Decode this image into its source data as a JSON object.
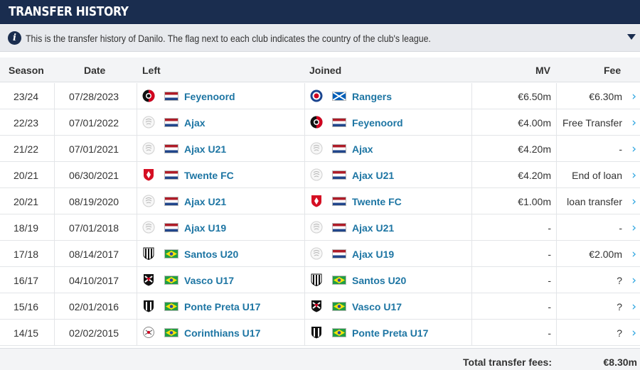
{
  "header": {
    "title": "TRANSFER HISTORY"
  },
  "info": {
    "text": "This is the transfer history of Danilo. The flag next to each club indicates the country of the club's league."
  },
  "columns": {
    "season": "Season",
    "date": "Date",
    "left": "Left",
    "joined": "Joined",
    "mv": "MV",
    "fee": "Fee"
  },
  "colors": {
    "header_bg": "#1a2d4f",
    "link": "#1d75a3",
    "chevron": "#2aa4e0"
  },
  "rows": [
    {
      "season": "23/24",
      "date": "07/28/2023",
      "left": {
        "club": "Feyenoord",
        "crest": "feyenoord-crest-icon",
        "flag": "netherlands-flag-icon"
      },
      "joined": {
        "club": "Rangers",
        "crest": "rangers-crest-icon",
        "flag": "scotland-flag-icon"
      },
      "mv": "€6.50m",
      "fee": "€6.30m"
    },
    {
      "season": "22/23",
      "date": "07/01/2022",
      "left": {
        "club": "Ajax",
        "crest": "ajax-crest-icon",
        "flag": "netherlands-flag-icon"
      },
      "joined": {
        "club": "Feyenoord",
        "crest": "feyenoord-crest-icon",
        "flag": "netherlands-flag-icon"
      },
      "mv": "€4.00m",
      "fee": "Free Transfer"
    },
    {
      "season": "21/22",
      "date": "07/01/2021",
      "left": {
        "club": "Ajax U21",
        "crest": "ajax-crest-icon",
        "flag": "netherlands-flag-icon"
      },
      "joined": {
        "club": "Ajax",
        "crest": "ajax-crest-icon",
        "flag": "netherlands-flag-icon"
      },
      "mv": "€4.20m",
      "fee": "-"
    },
    {
      "season": "20/21",
      "date": "06/30/2021",
      "left": {
        "club": "Twente FC",
        "crest": "twente-crest-icon",
        "flag": "netherlands-flag-icon"
      },
      "joined": {
        "club": "Ajax U21",
        "crest": "ajax-crest-icon",
        "flag": "netherlands-flag-icon"
      },
      "mv": "€4.20m",
      "fee": "End of loan"
    },
    {
      "season": "20/21",
      "date": "08/19/2020",
      "left": {
        "club": "Ajax U21",
        "crest": "ajax-crest-icon",
        "flag": "netherlands-flag-icon"
      },
      "joined": {
        "club": "Twente FC",
        "crest": "twente-crest-icon",
        "flag": "netherlands-flag-icon"
      },
      "mv": "€1.00m",
      "fee": "loan transfer"
    },
    {
      "season": "18/19",
      "date": "07/01/2018",
      "left": {
        "club": "Ajax U19",
        "crest": "ajax-crest-icon",
        "flag": "netherlands-flag-icon"
      },
      "joined": {
        "club": "Ajax U21",
        "crest": "ajax-crest-icon",
        "flag": "netherlands-flag-icon"
      },
      "mv": "-",
      "fee": "-"
    },
    {
      "season": "17/18",
      "date": "08/14/2017",
      "left": {
        "club": "Santos U20",
        "crest": "santos-crest-icon",
        "flag": "brazil-flag-icon"
      },
      "joined": {
        "club": "Ajax U19",
        "crest": "ajax-crest-icon",
        "flag": "netherlands-flag-icon"
      },
      "mv": "-",
      "fee": "€2.00m"
    },
    {
      "season": "16/17",
      "date": "04/10/2017",
      "left": {
        "club": "Vasco U17",
        "crest": "vasco-crest-icon",
        "flag": "brazil-flag-icon"
      },
      "joined": {
        "club": "Santos U20",
        "crest": "santos-crest-icon",
        "flag": "brazil-flag-icon"
      },
      "mv": "-",
      "fee": "?"
    },
    {
      "season": "15/16",
      "date": "02/01/2016",
      "left": {
        "club": "Ponte Preta U17",
        "crest": "ponte-preta-crest-icon",
        "flag": "brazil-flag-icon"
      },
      "joined": {
        "club": "Vasco U17",
        "crest": "vasco-crest-icon",
        "flag": "brazil-flag-icon"
      },
      "mv": "-",
      "fee": "?"
    },
    {
      "season": "14/15",
      "date": "02/02/2015",
      "left": {
        "club": "Corinthians U17",
        "crest": "corinthians-crest-icon",
        "flag": "brazil-flag-icon"
      },
      "joined": {
        "club": "Ponte Preta U17",
        "crest": "ponte-preta-crest-icon",
        "flag": "brazil-flag-icon"
      },
      "mv": "-",
      "fee": "?"
    }
  ],
  "footer": {
    "total_label": "Total transfer fees:",
    "total_value": "€8.30m"
  }
}
